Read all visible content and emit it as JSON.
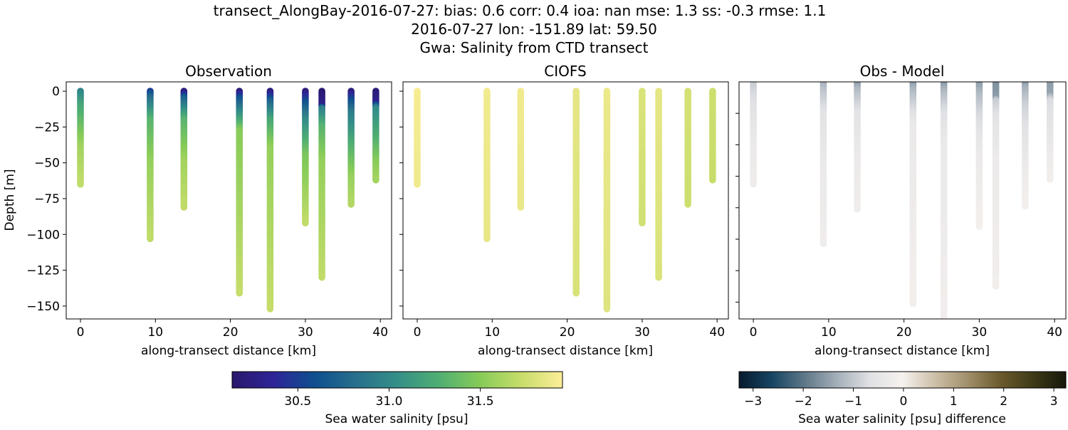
{
  "title_lines": [
    "transect_AlongBay-2016-07-27: bias: 0.6  corr: 0.4  ioa: nan  mse: 1.3  ss: -0.3  rmse: 1.1",
    "2016-07-27 lon: -151.89 lat: 59.50",
    "Gwa: Salinity from CTD transect"
  ],
  "chart_data": [
    {
      "type": "scatter",
      "title": "Observation",
      "xlabel": "along-transect distance [km]",
      "ylabel": "Depth [m]",
      "xlim": [
        -1.9,
        41.5
      ],
      "ylim": [
        -159,
        6.5
      ],
      "xticks": [
        "0",
        "10",
        "20",
        "30",
        "40"
      ],
      "yticks": [
        "0",
        "−25",
        "−50",
        "−75",
        "−100",
        "−125",
        "−150"
      ],
      "variable": "obs"
    },
    {
      "type": "scatter",
      "title": "CIOFS",
      "xlabel": "along-transect distance [km]",
      "xlim": [
        -1.9,
        41.5
      ],
      "ylim": [
        -159,
        6.5
      ],
      "xticks": [
        "0",
        "10",
        "20",
        "30",
        "40"
      ],
      "variable": "model"
    },
    {
      "type": "scatter",
      "title": "Obs - Model",
      "xlabel": "along-transect distance [km]",
      "xlim": [
        -1.9,
        41.5
      ],
      "ylim": [
        -150.7,
        0
      ],
      "xticks": [
        "0",
        "10",
        "20",
        "30",
        "40"
      ],
      "yticks_values": [
        -20,
        -40,
        -60,
        -80,
        -100,
        -120,
        -140
      ],
      "variable": "diff"
    }
  ],
  "casts": [
    {
      "distance_km": 0.0,
      "max_depth_m": 65,
      "obs": [
        [
          0,
          30.95
        ],
        [
          10,
          31.2
        ],
        [
          40,
          31.6
        ],
        [
          65,
          31.7
        ]
      ],
      "model": 31.92
    },
    {
      "distance_km": 9.3,
      "max_depth_m": 103,
      "obs": [
        [
          0,
          30.5
        ],
        [
          5,
          30.8
        ],
        [
          20,
          31.3
        ],
        [
          50,
          31.55
        ],
        [
          103,
          31.7
        ]
      ],
      "model": 31.9
    },
    {
      "distance_km": 13.8,
      "max_depth_m": 81,
      "obs": [
        [
          0,
          30.2
        ],
        [
          5,
          30.7
        ],
        [
          20,
          31.3
        ],
        [
          50,
          31.6
        ],
        [
          81,
          31.7
        ]
      ],
      "model": 31.9
    },
    {
      "distance_km": 21.2,
      "max_depth_m": 141,
      "obs": [
        [
          0,
          30.2
        ],
        [
          5,
          30.6
        ],
        [
          15,
          31.0
        ],
        [
          28,
          31.5
        ],
        [
          141,
          31.72
        ]
      ],
      "model": 31.85
    },
    {
      "distance_km": 25.3,
      "max_depth_m": 152,
      "obs": [
        [
          0,
          30.2
        ],
        [
          7,
          30.7
        ],
        [
          20,
          31.2
        ],
        [
          40,
          31.55
        ],
        [
          152,
          31.72
        ]
      ],
      "model": 31.88
    },
    {
      "distance_km": 30.0,
      "max_depth_m": 92,
      "obs": [
        [
          0,
          30.2
        ],
        [
          8,
          30.6
        ],
        [
          20,
          31.0
        ],
        [
          45,
          31.45
        ],
        [
          92,
          31.7
        ]
      ],
      "model": 31.8
    },
    {
      "distance_km": 32.2,
      "max_depth_m": 130,
      "obs": [
        [
          0,
          30.15
        ],
        [
          10,
          30.3
        ],
        [
          12,
          30.9
        ],
        [
          25,
          31.3
        ],
        [
          50,
          31.55
        ],
        [
          130,
          31.7
        ]
      ],
      "model": 31.85
    },
    {
      "distance_km": 36.1,
      "max_depth_m": 79,
      "obs": [
        [
          0,
          30.2
        ],
        [
          5,
          30.5
        ],
        [
          15,
          30.9
        ],
        [
          40,
          31.3
        ],
        [
          60,
          31.55
        ],
        [
          79,
          31.65
        ]
      ],
      "model": 31.78
    },
    {
      "distance_km": 39.4,
      "max_depth_m": 62,
      "obs": [
        [
          0,
          30.2
        ],
        [
          8,
          30.3
        ],
        [
          12,
          31.0
        ],
        [
          35,
          31.3
        ],
        [
          50,
          31.5
        ],
        [
          62,
          31.6
        ]
      ],
      "model": 31.75
    }
  ],
  "colorbars": {
    "salinity": {
      "label": "Sea water salinity [psu]",
      "range": [
        30.14,
        31.95
      ],
      "ticks": [
        30.5,
        31.0,
        31.5
      ],
      "tick_labels": [
        "30.5",
        "31.0",
        "31.5"
      ],
      "colors": [
        "#2a186c",
        "#2e2497",
        "#0f4f8f",
        "#276f8c",
        "#348f87",
        "#4fae73",
        "#86cb58",
        "#c7dd6a",
        "#fdee99"
      ]
    },
    "difference": {
      "label": "Sea water salinity [psu] difference",
      "range": [
        -3.28,
        3.24
      ],
      "ticks": [
        -3,
        -2,
        -1,
        0,
        1,
        2,
        3
      ],
      "tick_labels": [
        "−3",
        "−2",
        "−1",
        "0",
        "1",
        "2",
        "3"
      ],
      "colors": [
        "#07192e",
        "#164563",
        "#5e7788",
        "#a4afb9",
        "#e0e1e4",
        "#f5f1ee",
        "#cdbfa8",
        "#a08f6a",
        "#6b5a2c",
        "#3e3a17",
        "#16170a"
      ]
    }
  }
}
